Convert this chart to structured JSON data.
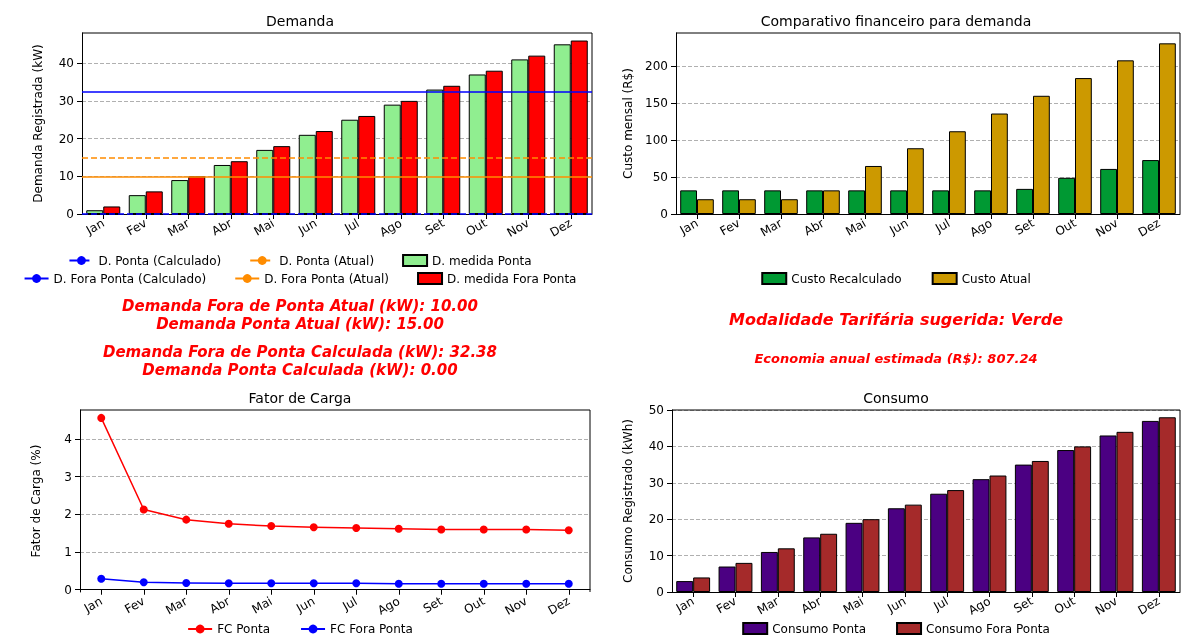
{
  "chart_data": [
    {
      "type": "bar",
      "title": "Demanda",
      "ylabel": "Demanda Registrada (kW)",
      "categories": [
        "Jan",
        "Fev",
        "Mar",
        "Abr",
        "Mai",
        "Jun",
        "Jul",
        "Ago",
        "Set",
        "Out",
        "Nov",
        "Dez"
      ],
      "series": [
        {
          "name": "D. medida Ponta",
          "color": "#90ee90",
          "values": [
            1,
            5,
            9,
            13,
            17,
            21,
            25,
            29,
            33,
            37,
            41,
            45
          ]
        },
        {
          "name": "D. medida Fora Ponta",
          "color": "#ff0000",
          "values": [
            2,
            6,
            10,
            14,
            18,
            22,
            26,
            30,
            34,
            38,
            42,
            46
          ]
        }
      ],
      "ref_lines": [
        {
          "axis": "y",
          "value": 0,
          "label": "D. Ponta (Calculado)",
          "color": "#0000ff",
          "line_style": "dashed"
        },
        {
          "axis": "y",
          "value": 32.38,
          "label": "D. Fora Ponta (Calculado)",
          "color": "#0000ff",
          "line_style": "solid"
        },
        {
          "axis": "y",
          "value": 15,
          "label": "D. Ponta (Atual)",
          "color": "#ff8c00",
          "line_style": "dashed"
        },
        {
          "axis": "y",
          "value": 10,
          "label": "D. Fora Ponta (Atual)",
          "color": "#ff8c00",
          "line_style": "solid"
        }
      ],
      "ylim": [
        0,
        48
      ],
      "yticks": [
        0,
        10,
        20,
        30,
        40
      ],
      "grid": "y",
      "legend": "bottom"
    },
    {
      "type": "bar",
      "title": "Comparativo financeiro para demanda",
      "ylabel": "Custo mensal (R$)",
      "categories": [
        "Jan",
        "Fev",
        "Mar",
        "Abr",
        "Mai",
        "Jun",
        "Jul",
        "Ago",
        "Set",
        "Out",
        "Nov",
        "Dez"
      ],
      "series": [
        {
          "name": "Custo Recalculado",
          "color": "#009933",
          "values": [
            32,
            32,
            32,
            32,
            32,
            32,
            32,
            32,
            34,
            49,
            61,
            73
          ]
        },
        {
          "name": "Custo Atual",
          "color": "#cc9900",
          "values": [
            20,
            20,
            20,
            32,
            65,
            89,
            112,
            136,
            160,
            184,
            208,
            231
          ]
        }
      ],
      "ylim": [
        0,
        245
      ],
      "yticks": [
        0,
        50,
        100,
        150,
        200
      ],
      "grid": "y",
      "legend": "bottom"
    },
    {
      "type": "other",
      "annotations": [
        "Demanda Fora de Ponta Atual (kW): 10.00",
        "Demanda Ponta Atual (kW): 15.00",
        "Demanda Fora de Ponta Calculada (kW): 32.38",
        "Demanda Ponta Calculada (kW): 0.00"
      ]
    },
    {
      "type": "other",
      "annotations": [
        "Modalidade Tarifária sugerida: Verde",
        "Economia anual estimada (R$): 807.24"
      ]
    },
    {
      "type": "line",
      "title": "Fator de Carga",
      "ylabel": "Fator de Carga (%)",
      "categories": [
        "Jan",
        "Fev",
        "Mar",
        "Abr",
        "Mai",
        "Jun",
        "Jul",
        "Ago",
        "Set",
        "Out",
        "Nov",
        "Dez"
      ],
      "series": [
        {
          "name": "FC Ponta",
          "color": "#ff0000",
          "values": [
            4.56,
            2.13,
            1.86,
            1.75,
            1.69,
            1.66,
            1.64,
            1.62,
            1.6,
            1.6,
            1.6,
            1.58
          ]
        },
        {
          "name": "FC Fora Ponta",
          "color": "#0000ff",
          "values": [
            0.29,
            0.2,
            0.18,
            0.17,
            0.17,
            0.17,
            0.17,
            0.16,
            0.16,
            0.16,
            0.16,
            0.16
          ]
        }
      ],
      "ylim": [
        -0.06,
        4.77
      ],
      "yticks": [
        0,
        1,
        2,
        3,
        4
      ],
      "grid": "y",
      "legend": "bottom",
      "marker": "circle"
    },
    {
      "type": "bar",
      "title": "Consumo",
      "ylabel": "Consumo Registrado (kWh)",
      "categories": [
        "Jan",
        "Fev",
        "Mar",
        "Abr",
        "Mai",
        "Jun",
        "Jul",
        "Ago",
        "Set",
        "Out",
        "Nov",
        "Dez"
      ],
      "series": [
        {
          "name": "Consumo Ponta",
          "color": "#4b0082",
          "values": [
            3,
            7,
            11,
            15,
            19,
            23,
            27,
            31,
            35,
            39,
            43,
            47
          ]
        },
        {
          "name": "Consumo Fora Ponta",
          "color": "#a52a2a",
          "values": [
            4,
            8,
            12,
            16,
            20,
            24,
            28,
            32,
            36,
            40,
            44,
            48
          ]
        }
      ],
      "ylim": [
        0,
        50
      ],
      "yticks": [
        0,
        10,
        20,
        30,
        40,
        50
      ],
      "grid": "y",
      "legend": "bottom"
    }
  ]
}
